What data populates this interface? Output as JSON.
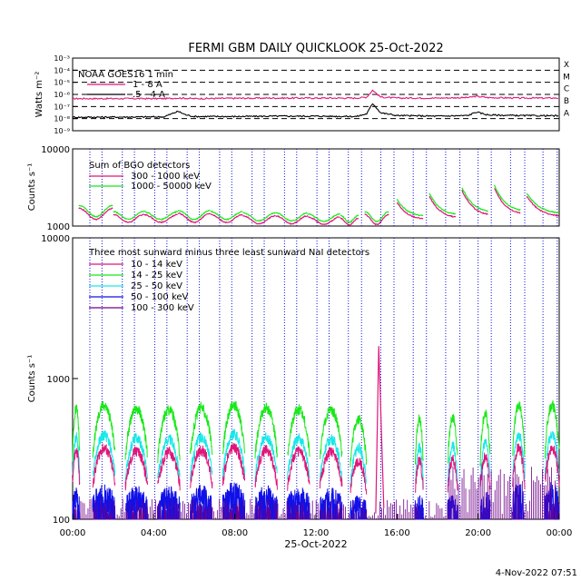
{
  "header": {
    "title": "FERMI GBM DAILY QUICKLOOK  25-Oct-2022"
  },
  "footer": {
    "timestamp": "4-Nov-2022 07:51"
  },
  "colors": {
    "magenta": "#e0157a",
    "green": "#18e818",
    "cyan": "#18e8e8",
    "blue": "#1010e8",
    "purple": "#700088",
    "black": "#000000"
  },
  "chart_data": [
    {
      "type": "line",
      "panel": "goes",
      "ylabel": "Watts m⁻²",
      "yscale": "log",
      "ylim": [
        1e-09,
        0.001
      ],
      "ytick_labels": [
        "10⁻³",
        "10⁻⁴",
        "10⁻⁵",
        "10⁻⁶",
        "10⁻⁷",
        "10⁻⁸",
        "10⁻⁹"
      ],
      "flare_classes": [
        "X",
        "M",
        "C",
        "B",
        "A"
      ],
      "legend_title": "NOAA GOES16 1 min",
      "series": [
        {
          "name": "1 - 8 A",
          "color": "#e0157a",
          "x": [
            0,
            4.5,
            5.2,
            5.6,
            6,
            8,
            10,
            12,
            14,
            14.5,
            14.8,
            15.2,
            16,
            18,
            19.5,
            19.9,
            20.5,
            22,
            24
          ],
          "y": [
            4.5e-07,
            4.5e-07,
            5e-07,
            4.8e-07,
            4.5e-07,
            4.8e-07,
            5e-07,
            5e-07,
            5e-07,
            6e-07,
            2.2e-06,
            6e-07,
            5e-07,
            5e-07,
            5.5e-07,
            7e-07,
            5.5e-07,
            5e-07,
            5e-07
          ]
        },
        {
          "name": ".5 - 4 A",
          "color": "#000000",
          "x": [
            0,
            4.5,
            5.2,
            5.6,
            6,
            8,
            10,
            12,
            14,
            14.5,
            14.8,
            15.2,
            16,
            18,
            19.5,
            19.9,
            20.5,
            22,
            24
          ],
          "y": [
            1.3e-08,
            1.4e-08,
            4e-08,
            2e-08,
            1.5e-08,
            1.5e-08,
            1.6e-08,
            1.6e-08,
            1.5e-08,
            2.5e-08,
            1.8e-07,
            3e-08,
            1.8e-08,
            1.6e-08,
            1.8e-08,
            3.5e-08,
            2e-08,
            1.8e-08,
            1.7e-08
          ]
        }
      ]
    },
    {
      "type": "line",
      "panel": "bgo",
      "ylabel": "Counts s⁻¹",
      "yscale": "log",
      "ylim": [
        1000,
        10000
      ],
      "ytick_labels": [
        "10000",
        "1000"
      ],
      "legend_title": "Sum of BGO detectors",
      "series": [
        {
          "name": "300 - 1000 keV",
          "color": "#e0157a"
        },
        {
          "name": "1000 - 50000 keV",
          "color": "#18e818"
        }
      ],
      "orbit_segments": [
        {
          "start": 0.3,
          "end": 2.0,
          "peak": 1750,
          "base": 1250
        },
        {
          "start": 2.0,
          "end": 3.5,
          "peak": 1450,
          "base": 1150
        },
        {
          "start": 3.5,
          "end": 5.2,
          "peak": 1450,
          "base": 1150
        },
        {
          "start": 5.2,
          "end": 6.8,
          "peak": 1500,
          "base": 1150
        },
        {
          "start": 6.8,
          "end": 8.4,
          "peak": 1450,
          "base": 1150
        },
        {
          "start": 8.4,
          "end": 10.0,
          "peak": 1400,
          "base": 1100
        },
        {
          "start": 10.0,
          "end": 11.6,
          "peak": 1400,
          "base": 1100
        },
        {
          "start": 11.6,
          "end": 13.2,
          "peak": 1350,
          "base": 1080
        },
        {
          "start": 13.2,
          "end": 14.1,
          "peak": 1300,
          "base": 1060
        },
        {
          "start": 14.4,
          "end": 15.6,
          "peak": 1450,
          "base": 1080
        },
        {
          "start": 16.0,
          "end": 17.3,
          "peak": 2100,
          "base": 1250
        },
        {
          "start": 17.6,
          "end": 18.9,
          "peak": 2500,
          "base": 1300
        },
        {
          "start": 19.2,
          "end": 20.5,
          "peak": 3000,
          "base": 1400
        },
        {
          "start": 20.8,
          "end": 22.1,
          "peak": 3200,
          "base": 1450
        },
        {
          "start": 22.4,
          "end": 24.0,
          "peak": 2500,
          "base": 1350
        }
      ]
    },
    {
      "type": "line",
      "panel": "nai",
      "ylabel": "Counts s⁻¹",
      "yscale": "log",
      "ylim": [
        100,
        10000
      ],
      "ytick_labels": [
        "10000",
        "1000",
        "100"
      ],
      "xlabel": "25-Oct-2022",
      "xtick_labels": [
        "00:00",
        "04:00",
        "08:00",
        "12:00",
        "16:00",
        "20:00",
        "00:00"
      ],
      "xlim": [
        0,
        24
      ],
      "legend_title": "Three most sunward minus three least sunward NaI detectors",
      "series": [
        {
          "name": "10 - 14 keV",
          "color": "#e0157a"
        },
        {
          "name": "14 - 25 keV",
          "color": "#18e818"
        },
        {
          "name": "25 - 50 keV",
          "color": "#18e8e8"
        },
        {
          "name": "50 - 100 keV",
          "color": "#1010e8"
        },
        {
          "name": "100 - 300 keV",
          "color": "#700088"
        }
      ],
      "day_segments": [
        {
          "start": 0.0,
          "end": 0.35,
          "green": 620
        },
        {
          "start": 1.0,
          "end": 2.1,
          "green": 640
        },
        {
          "start": 2.6,
          "end": 3.7,
          "green": 610
        },
        {
          "start": 4.2,
          "end": 5.3,
          "green": 600
        },
        {
          "start": 5.8,
          "end": 6.9,
          "green": 620
        },
        {
          "start": 7.4,
          "end": 8.5,
          "green": 650
        },
        {
          "start": 9.0,
          "end": 10.1,
          "green": 620
        },
        {
          "start": 10.6,
          "end": 11.7,
          "green": 610
        },
        {
          "start": 12.2,
          "end": 13.3,
          "green": 600
        },
        {
          "start": 13.7,
          "end": 14.5,
          "green": 520
        },
        {
          "start": 16.9,
          "end": 17.3,
          "green": 520
        },
        {
          "start": 18.5,
          "end": 19.0,
          "green": 530
        },
        {
          "start": 20.1,
          "end": 20.6,
          "green": 560
        },
        {
          "start": 21.7,
          "end": 22.3,
          "green": 640
        },
        {
          "start": 23.3,
          "end": 24.0,
          "green": 650
        }
      ],
      "flare_spike": {
        "time": 15.1,
        "value": 1700
      }
    }
  ],
  "saa_lines": [
    0.85,
    1.45,
    2.45,
    3.05,
    4.05,
    4.65,
    5.65,
    6.25,
    7.25,
    7.85,
    8.85,
    9.45,
    10.45,
    11.05,
    12.05,
    12.65,
    13.6,
    14.25,
    15.2,
    15.85,
    16.8,
    17.45,
    18.4,
    19.1,
    20.0,
    20.65,
    21.6,
    22.3,
    23.2,
    23.9
  ]
}
